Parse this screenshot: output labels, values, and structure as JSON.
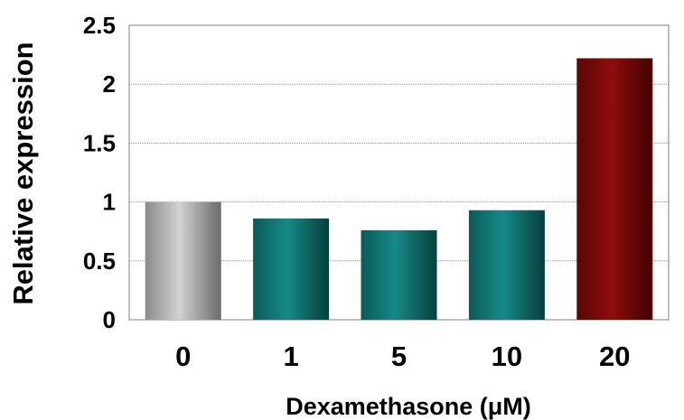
{
  "chart_data": {
    "type": "bar",
    "categories": [
      "0",
      "1",
      "5",
      "10",
      "20"
    ],
    "values": [
      1.0,
      0.86,
      0.76,
      0.93,
      2.22
    ],
    "bar_colors": [
      "#9c9c9c",
      "#0f6f6c",
      "#0f6f6c",
      "#0f6f6c",
      "#7a0a0a"
    ],
    "title": "",
    "xlabel": "Dexamethasone (μM)",
    "ylabel": "Relative expression",
    "ylim": [
      0,
      2.5
    ],
    "yticks": [
      "0",
      "0.5",
      "1",
      "1.5",
      "2",
      "2.5"
    ],
    "grid": true
  }
}
